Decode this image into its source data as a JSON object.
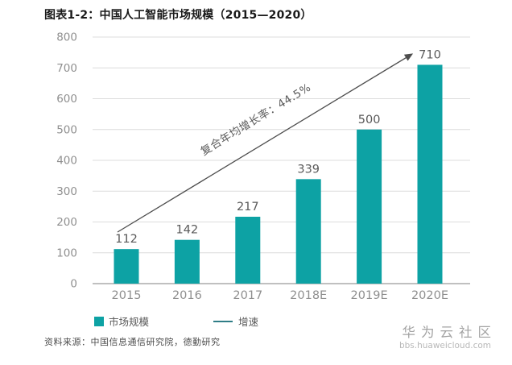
{
  "header": {
    "note": ""
  },
  "chart_data": {
    "type": "bar",
    "title": "图表1-2：中国人工智能市场规模（2015—2020）",
    "categories": [
      "2015",
      "2016",
      "2017",
      "2018E",
      "2019E",
      "2020E"
    ],
    "values": [
      112,
      142,
      217,
      339,
      500,
      710
    ],
    "ylim": [
      0,
      800
    ],
    "ytick_step": 100,
    "yticks": [
      0,
      100,
      200,
      300,
      400,
      500,
      600,
      700,
      800
    ],
    "grid": true,
    "annotation": "复合年均增长率：44.5%",
    "legend_position": "bottom",
    "legend": [
      {
        "label": "市场规模",
        "marker": "square"
      },
      {
        "label": "增速",
        "marker": "line"
      }
    ]
  },
  "colors": {
    "bar": "#0da2a4",
    "gridline": "#dcdcdc",
    "axis_line": "#ababab",
    "tick_label": "#8f8f8f",
    "value_label": "#595959",
    "arrow": "#4d4d4d",
    "annotation_text": "#595959",
    "legend_line": "#2f7d87",
    "legend_text": "#595959"
  },
  "footer": {
    "source": "资料来源：中国信息通信研究院，德勤研究"
  },
  "watermark": {
    "name": "华为云社区",
    "url": "bbs.huaweicloud.com"
  }
}
